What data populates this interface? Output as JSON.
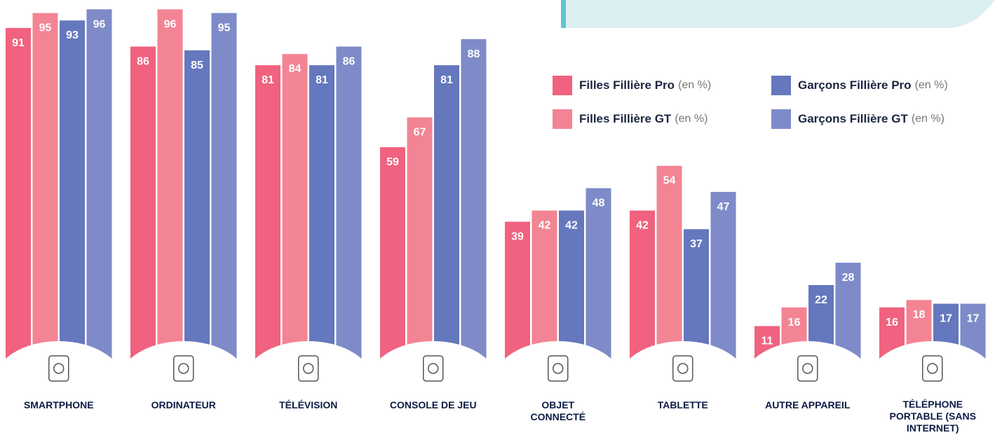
{
  "chart_data": {
    "type": "bar",
    "categories": [
      "SMARTPHONE",
      "ORDINATEUR",
      "TÉLÉVISION",
      "CONSOLE DE JEU",
      "OBJET CONNECTÉ",
      "TABLETTE",
      "AUTRE APPAREIL",
      "TÉLÉPHONE PORTABLE (SANS INTERNET)"
    ],
    "series": [
      {
        "name": "Filles Fillière Pro",
        "color": "#f0627f",
        "values": [
          91,
          86,
          81,
          59,
          39,
          42,
          11,
          16
        ]
      },
      {
        "name": "Filles Fillière GT",
        "color": "#f38494",
        "values": [
          95,
          96,
          84,
          67,
          42,
          54,
          16,
          18
        ]
      },
      {
        "name": "Garçons Fillière Pro",
        "color": "#6577bd",
        "values": [
          93,
          85,
          81,
          81,
          42,
          37,
          22,
          17
        ]
      },
      {
        "name": "Garçons Fillière GT",
        "color": "#7e8bc8",
        "values": [
          96,
          95,
          86,
          88,
          48,
          47,
          28,
          17
        ]
      }
    ],
    "legend_suffix": "(en %)",
    "ylim": [
      0,
      100
    ]
  }
}
